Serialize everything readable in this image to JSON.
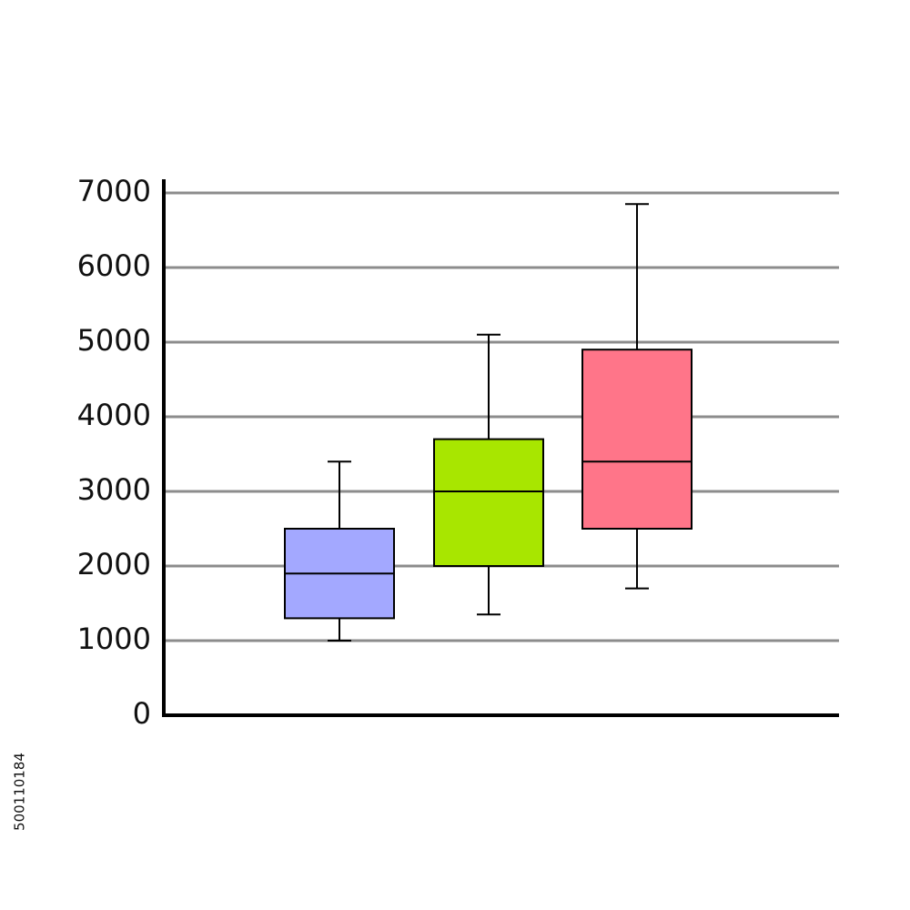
{
  "chart_data": {
    "type": "box",
    "categories": [
      null,
      null,
      null
    ],
    "boxes": [
      {
        "color": "#a3a8ff",
        "min": 1000,
        "q1": 1300,
        "median": 1900,
        "q3": 2500,
        "max": 3400
      },
      {
        "color": "#a8e600",
        "min": 1350,
        "q1": 2000,
        "median": 3000,
        "q3": 3700,
        "max": 5100
      },
      {
        "color": "#ff7589",
        "min": 1700,
        "q1": 2500,
        "median": 3400,
        "q3": 4900,
        "max": 6850
      }
    ],
    "ylim": [
      0,
      7000
    ],
    "yticks": [
      0,
      1000,
      2000,
      3000,
      4000,
      5000,
      6000,
      7000
    ],
    "grid": true
  },
  "watermark_id": "500110184"
}
